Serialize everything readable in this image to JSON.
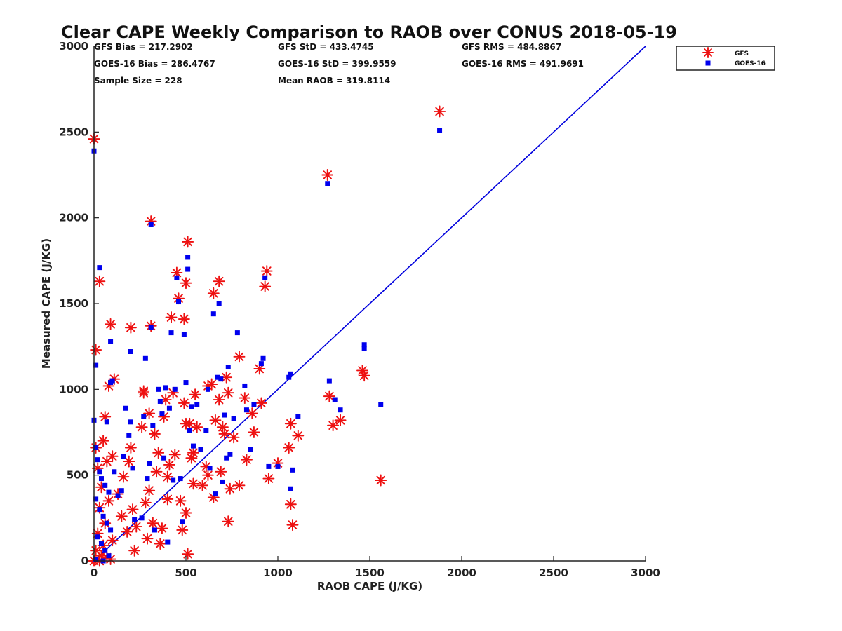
{
  "chart_data": {
    "type": "scatter",
    "title": "Clear CAPE Weekly Comparison to RAOB over CONUS 2018-05-19",
    "xlabel": "RAOB CAPE (J/KG)",
    "ylabel": "Measured CAPE (J/KG)",
    "xlim": [
      0,
      3000
    ],
    "ylim": [
      0,
      3000
    ],
    "xticks": [
      "0",
      "500",
      "1000",
      "1500",
      "2000",
      "2500",
      "3000"
    ],
    "yticks": [
      "0",
      "500",
      "1000",
      "1500",
      "2000",
      "2500",
      "3000"
    ],
    "grid": false,
    "legend_position": "top-right",
    "reference_line": {
      "x": [
        0,
        3000
      ],
      "y": [
        0,
        3000
      ],
      "color": "#0000dd"
    },
    "stats": [
      [
        "GFS Bias = 217.2902",
        "GFS StD = 433.4745",
        "GFS RMS = 484.8867"
      ],
      [
        "GOES-16 Bias = 286.4767",
        "GOES-16 StD = 399.9559",
        "GOES-16 RMS = 491.9691"
      ],
      [
        "Sample Size = 228",
        "Mean RAOB = 319.8114"
      ]
    ],
    "series": [
      {
        "name": "GFS",
        "marker": "asterisk",
        "color": "#ee1111",
        "points": [
          [
            0,
            2460
          ],
          [
            10,
            1230
          ],
          [
            30,
            1630
          ],
          [
            90,
            1380
          ],
          [
            60,
            840
          ],
          [
            80,
            1020
          ],
          [
            110,
            1060
          ],
          [
            10,
            660
          ],
          [
            50,
            700
          ],
          [
            20,
            540
          ],
          [
            40,
            430
          ],
          [
            70,
            580
          ],
          [
            100,
            610
          ],
          [
            30,
            310
          ],
          [
            80,
            350
          ],
          [
            60,
            220
          ],
          [
            20,
            160
          ],
          [
            50,
            90
          ],
          [
            10,
            60
          ],
          [
            40,
            30
          ],
          [
            70,
            20
          ],
          [
            90,
            10
          ],
          [
            0,
            0
          ],
          [
            30,
            0
          ],
          [
            100,
            120
          ],
          [
            130,
            390
          ],
          [
            150,
            260
          ],
          [
            160,
            490
          ],
          [
            180,
            170
          ],
          [
            190,
            580
          ],
          [
            200,
            1360
          ],
          [
            200,
            660
          ],
          [
            210,
            300
          ],
          [
            220,
            60
          ],
          [
            230,
            200
          ],
          [
            260,
            780
          ],
          [
            270,
            980
          ],
          [
            270,
            990
          ],
          [
            280,
            340
          ],
          [
            290,
            130
          ],
          [
            300,
            410
          ],
          [
            300,
            860
          ],
          [
            310,
            1370
          ],
          [
            310,
            1980
          ],
          [
            320,
            220
          ],
          [
            330,
            740
          ],
          [
            340,
            520
          ],
          [
            350,
            630
          ],
          [
            360,
            100
          ],
          [
            370,
            190
          ],
          [
            380,
            840
          ],
          [
            390,
            940
          ],
          [
            400,
            490
          ],
          [
            400,
            360
          ],
          [
            410,
            560
          ],
          [
            420,
            1420
          ],
          [
            430,
            980
          ],
          [
            440,
            620
          ],
          [
            450,
            1680
          ],
          [
            460,
            1530
          ],
          [
            470,
            350
          ],
          [
            480,
            180
          ],
          [
            490,
            1410
          ],
          [
            490,
            920
          ],
          [
            500,
            280
          ],
          [
            500,
            800
          ],
          [
            500,
            1620
          ],
          [
            510,
            1860
          ],
          [
            510,
            40
          ],
          [
            520,
            800
          ],
          [
            530,
            600
          ],
          [
            540,
            630
          ],
          [
            540,
            450
          ],
          [
            550,
            970
          ],
          [
            560,
            780
          ],
          [
            590,
            440
          ],
          [
            610,
            550
          ],
          [
            620,
            500
          ],
          [
            620,
            1020
          ],
          [
            640,
            1030
          ],
          [
            650,
            1560
          ],
          [
            650,
            370
          ],
          [
            660,
            820
          ],
          [
            680,
            1630
          ],
          [
            680,
            940
          ],
          [
            690,
            520
          ],
          [
            700,
            780
          ],
          [
            710,
            740
          ],
          [
            720,
            1070
          ],
          [
            730,
            230
          ],
          [
            730,
            980
          ],
          [
            740,
            420
          ],
          [
            760,
            720
          ],
          [
            790,
            1190
          ],
          [
            790,
            440
          ],
          [
            820,
            950
          ],
          [
            830,
            590
          ],
          [
            860,
            860
          ],
          [
            870,
            750
          ],
          [
            900,
            1120
          ],
          [
            910,
            920
          ],
          [
            930,
            1600
          ],
          [
            940,
            1690
          ],
          [
            950,
            480
          ],
          [
            1000,
            570
          ],
          [
            1060,
            660
          ],
          [
            1070,
            330
          ],
          [
            1070,
            800
          ],
          [
            1080,
            210
          ],
          [
            1110,
            730
          ],
          [
            1270,
            2250
          ],
          [
            1280,
            960
          ],
          [
            1300,
            790
          ],
          [
            1340,
            820
          ],
          [
            1460,
            1110
          ],
          [
            1470,
            1080
          ],
          [
            1560,
            470
          ],
          [
            1880,
            2620
          ]
        ]
      },
      {
        "name": "GOES-16",
        "marker": "square",
        "color": "#0000ee",
        "points": [
          [
            0,
            2390
          ],
          [
            10,
            1140
          ],
          [
            30,
            1710
          ],
          [
            90,
            1280
          ],
          [
            0,
            820
          ],
          [
            10,
            660
          ],
          [
            20,
            590
          ],
          [
            30,
            520
          ],
          [
            40,
            480
          ],
          [
            60,
            440
          ],
          [
            80,
            400
          ],
          [
            10,
            360
          ],
          [
            30,
            300
          ],
          [
            50,
            260
          ],
          [
            70,
            220
          ],
          [
            90,
            180
          ],
          [
            20,
            140
          ],
          [
            40,
            100
          ],
          [
            60,
            60
          ],
          [
            80,
            30
          ],
          [
            10,
            10
          ],
          [
            50,
            0
          ],
          [
            70,
            810
          ],
          [
            90,
            1040
          ],
          [
            100,
            1050
          ],
          [
            110,
            520
          ],
          [
            130,
            380
          ],
          [
            150,
            410
          ],
          [
            160,
            610
          ],
          [
            170,
            890
          ],
          [
            190,
            730
          ],
          [
            200,
            810
          ],
          [
            200,
            1220
          ],
          [
            210,
            540
          ],
          [
            220,
            240
          ],
          [
            260,
            250
          ],
          [
            270,
            840
          ],
          [
            280,
            1180
          ],
          [
            290,
            480
          ],
          [
            300,
            570
          ],
          [
            310,
            1960
          ],
          [
            310,
            1360
          ],
          [
            320,
            790
          ],
          [
            330,
            180
          ],
          [
            350,
            1000
          ],
          [
            360,
            930
          ],
          [
            370,
            860
          ],
          [
            380,
            600
          ],
          [
            390,
            1010
          ],
          [
            400,
            110
          ],
          [
            410,
            890
          ],
          [
            420,
            1330
          ],
          [
            430,
            470
          ],
          [
            440,
            1000
          ],
          [
            450,
            1650
          ],
          [
            460,
            1510
          ],
          [
            470,
            480
          ],
          [
            480,
            230
          ],
          [
            490,
            1320
          ],
          [
            500,
            1040
          ],
          [
            510,
            1770
          ],
          [
            510,
            1700
          ],
          [
            520,
            760
          ],
          [
            530,
            900
          ],
          [
            540,
            670
          ],
          [
            560,
            910
          ],
          [
            580,
            650
          ],
          [
            610,
            760
          ],
          [
            620,
            1000
          ],
          [
            630,
            540
          ],
          [
            650,
            1440
          ],
          [
            660,
            390
          ],
          [
            670,
            1070
          ],
          [
            680,
            1500
          ],
          [
            690,
            1060
          ],
          [
            700,
            460
          ],
          [
            710,
            850
          ],
          [
            720,
            600
          ],
          [
            730,
            1130
          ],
          [
            740,
            620
          ],
          [
            760,
            830
          ],
          [
            780,
            1330
          ],
          [
            820,
            1020
          ],
          [
            830,
            880
          ],
          [
            850,
            650
          ],
          [
            870,
            910
          ],
          [
            910,
            1150
          ],
          [
            920,
            1180
          ],
          [
            930,
            1650
          ],
          [
            950,
            550
          ],
          [
            1000,
            550
          ],
          [
            1060,
            1070
          ],
          [
            1070,
            1090
          ],
          [
            1070,
            420
          ],
          [
            1080,
            530
          ],
          [
            1110,
            840
          ],
          [
            1270,
            2200
          ],
          [
            1280,
            1050
          ],
          [
            1310,
            940
          ],
          [
            1340,
            880
          ],
          [
            1470,
            1260
          ],
          [
            1470,
            1240
          ],
          [
            1560,
            910
          ],
          [
            1880,
            2510
          ]
        ]
      }
    ]
  }
}
